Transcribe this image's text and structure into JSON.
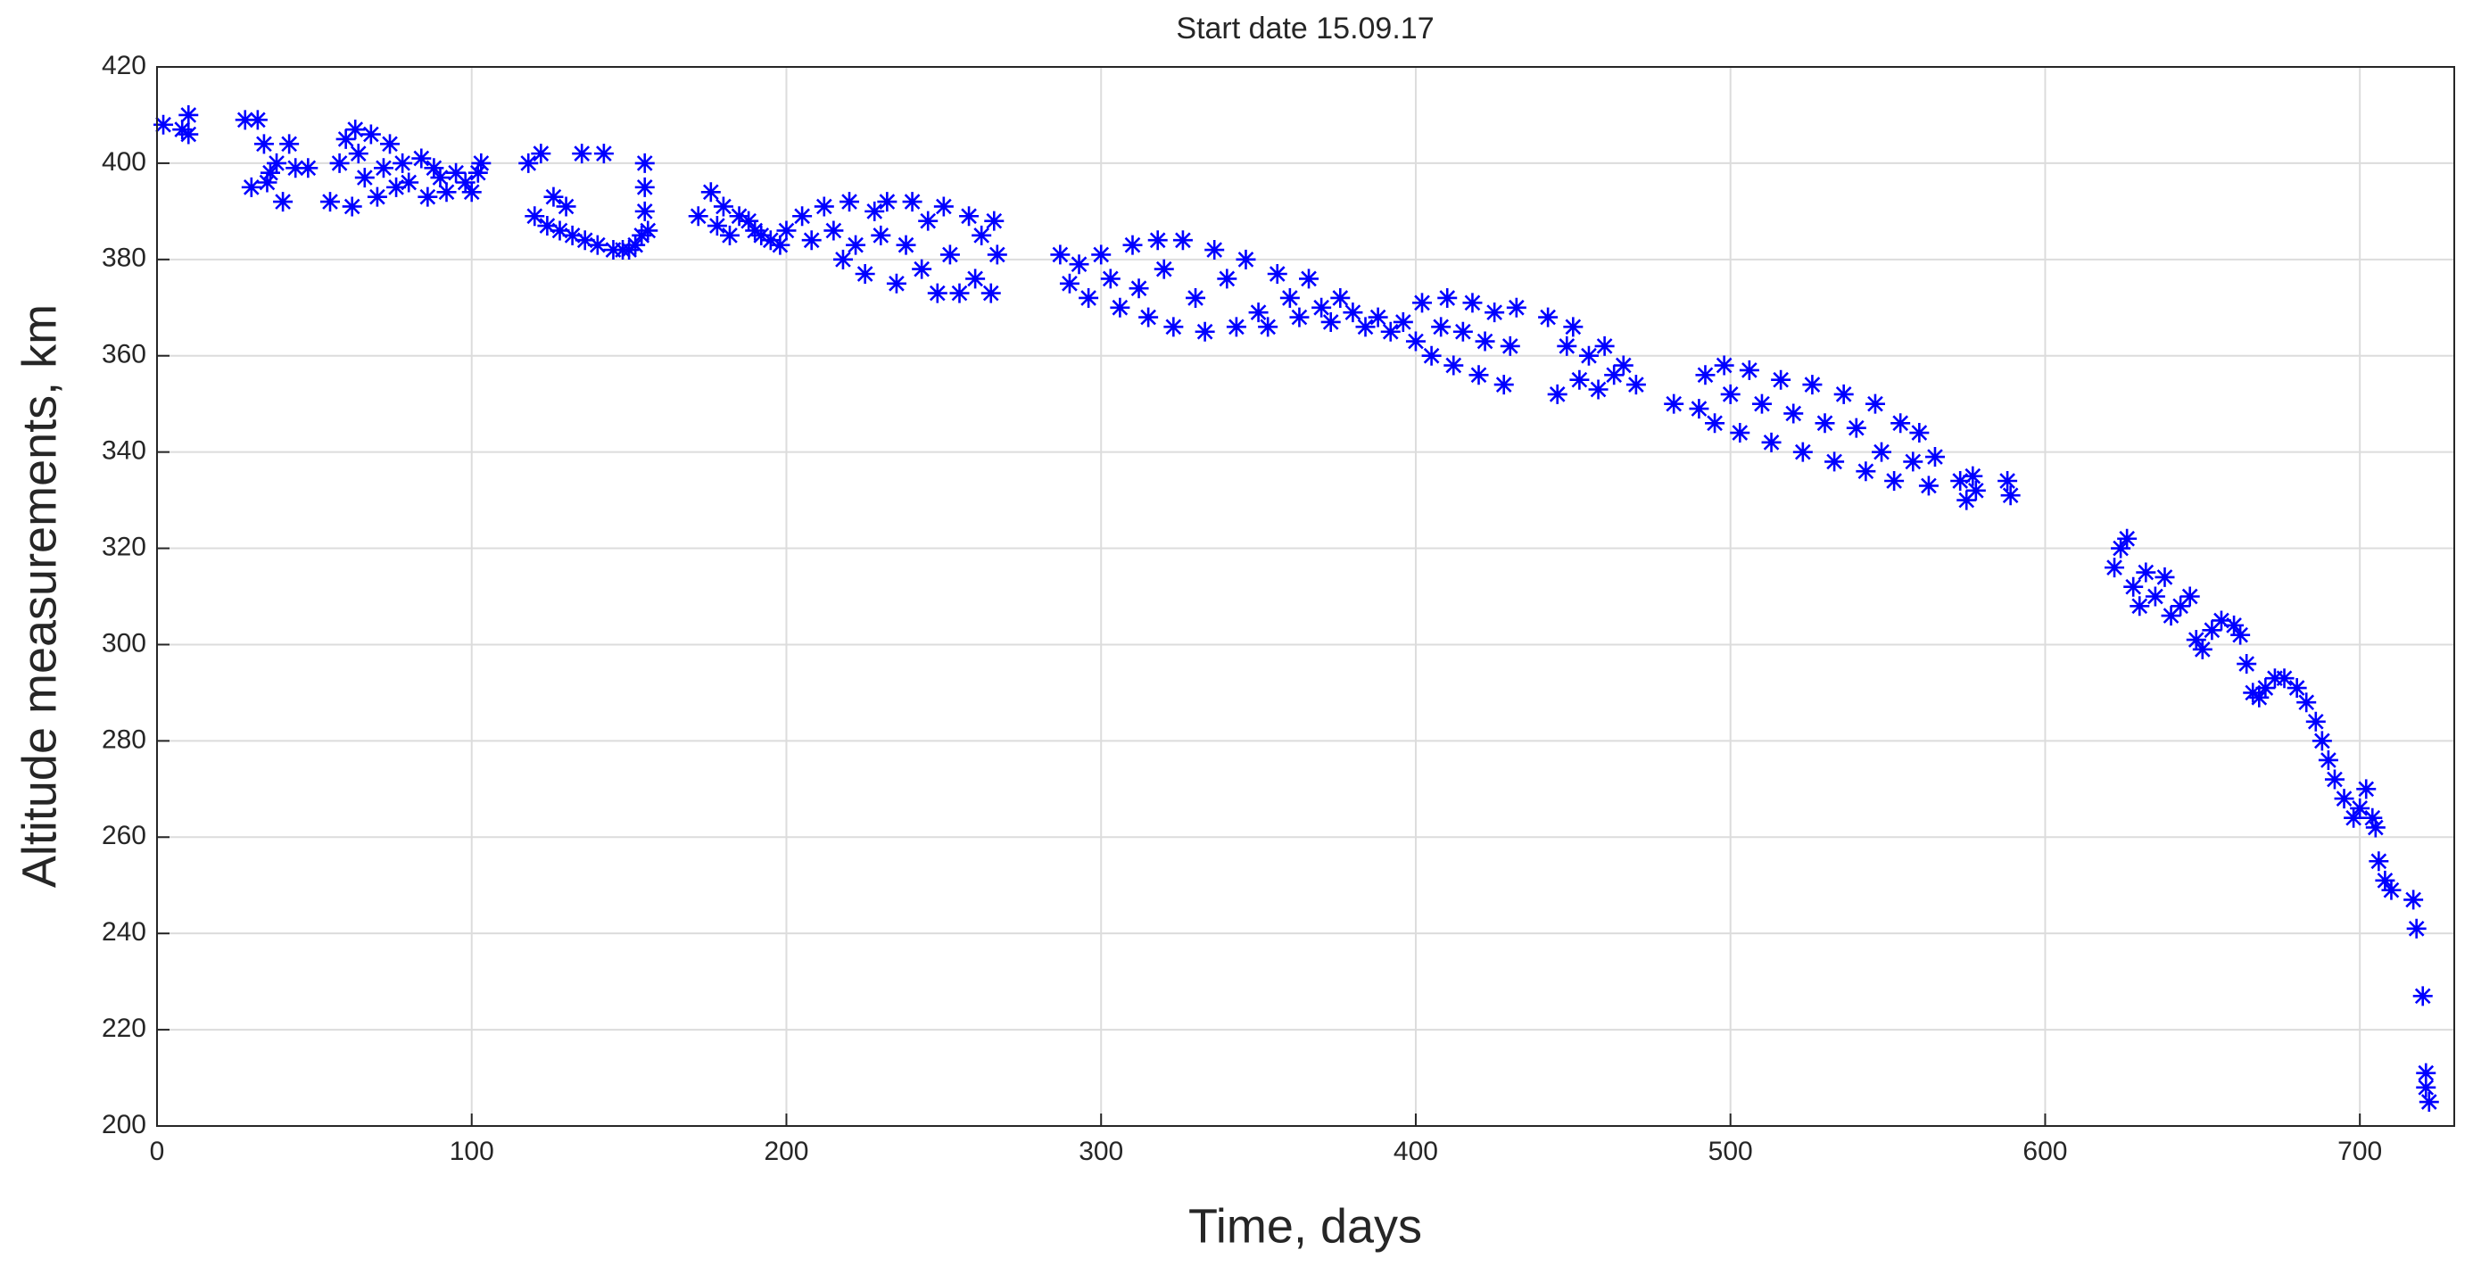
{
  "chart_data": {
    "type": "scatter",
    "title": "Start date 15.09.17",
    "xlabel": "Time, days",
    "ylabel": "Altitude measurements, km",
    "color": "#0000ff",
    "marker": "asterisk",
    "grid": true,
    "xlim": [
      0,
      730
    ],
    "ylim": [
      200,
      420
    ],
    "xticks": [
      0,
      100,
      200,
      300,
      400,
      500,
      600,
      700
    ],
    "yticks": [
      200,
      220,
      240,
      260,
      280,
      300,
      320,
      340,
      360,
      380,
      400,
      420
    ],
    "x": [
      2,
      8,
      10,
      10,
      28,
      30,
      32,
      34,
      35,
      36,
      38,
      40,
      42,
      44,
      48,
      55,
      58,
      60,
      62,
      63,
      64,
      66,
      68,
      70,
      72,
      74,
      76,
      78,
      80,
      84,
      86,
      88,
      90,
      92,
      95,
      98,
      100,
      102,
      103,
      118,
      120,
      122,
      124,
      126,
      128,
      130,
      132,
      135,
      136,
      140,
      142,
      145,
      148,
      150,
      152,
      154,
      155,
      155,
      155,
      156,
      172,
      176,
      178,
      180,
      182,
      185,
      188,
      190,
      192,
      195,
      198,
      200,
      205,
      208,
      212,
      215,
      218,
      220,
      222,
      225,
      228,
      230,
      232,
      235,
      238,
      240,
      243,
      245,
      248,
      250,
      252,
      255,
      258,
      260,
      262,
      265,
      266,
      267,
      287,
      290,
      293,
      296,
      300,
      303,
      306,
      310,
      312,
      315,
      318,
      320,
      323,
      326,
      330,
      333,
      336,
      340,
      343,
      346,
      350,
      353,
      356,
      360,
      363,
      366,
      370,
      373,
      376,
      380,
      384,
      388,
      392,
      396,
      400,
      402,
      405,
      408,
      410,
      412,
      415,
      418,
      420,
      422,
      425,
      428,
      430,
      432,
      442,
      445,
      448,
      450,
      452,
      455,
      458,
      460,
      463,
      466,
      470,
      482,
      490,
      492,
      495,
      498,
      500,
      503,
      506,
      510,
      513,
      516,
      520,
      523,
      526,
      530,
      533,
      536,
      540,
      543,
      546,
      548,
      552,
      554,
      558,
      560,
      563,
      565,
      573,
      575,
      577,
      578,
      588,
      589,
      622,
      624,
      626,
      628,
      630,
      632,
      635,
      638,
      640,
      643,
      646,
      648,
      650,
      653,
      656,
      660,
      662,
      664,
      666,
      668,
      670,
      673,
      676,
      680,
      683,
      686,
      688,
      690,
      692,
      695,
      698,
      700,
      702,
      704,
      705,
      706,
      708,
      710,
      717,
      718,
      720,
      721,
      721,
      722
    ],
    "values": [
      408,
      407,
      410,
      406,
      409,
      395,
      409,
      404,
      396,
      398,
      400,
      392,
      404,
      399,
      399,
      392,
      400,
      405,
      391,
      407,
      402,
      397,
      406,
      393,
      399,
      404,
      395,
      400,
      396,
      401,
      393,
      399,
      397,
      394,
      398,
      396,
      394,
      398,
      400,
      400,
      389,
      402,
      387,
      393,
      386,
      391,
      385,
      402,
      384,
      383,
      402,
      382,
      382,
      382,
      383,
      385,
      390,
      395,
      400,
      386,
      389,
      394,
      387,
      391,
      385,
      389,
      388,
      386,
      385,
      384,
      383,
      386,
      389,
      384,
      391,
      386,
      380,
      392,
      383,
      377,
      390,
      385,
      392,
      375,
      383,
      392,
      378,
      388,
      373,
      391,
      381,
      373,
      389,
      376,
      385,
      373,
      388,
      381,
      381,
      375,
      379,
      372,
      381,
      376,
      370,
      383,
      374,
      368,
      384,
      378,
      366,
      384,
      372,
      365,
      382,
      376,
      366,
      380,
      369,
      366,
      377,
      372,
      368,
      376,
      370,
      367,
      372,
      369,
      366,
      368,
      365,
      367,
      363,
      371,
      360,
      366,
      372,
      358,
      365,
      371,
      356,
      363,
      369,
      354,
      362,
      370,
      368,
      352,
      362,
      366,
      355,
      360,
      353,
      362,
      356,
      358,
      354,
      350,
      349,
      356,
      346,
      358,
      352,
      344,
      357,
      350,
      342,
      355,
      348,
      340,
      354,
      346,
      338,
      352,
      345,
      336,
      350,
      340,
      334,
      346,
      338,
      344,
      333,
      339,
      334,
      330,
      335,
      332,
      334,
      331,
      316,
      320,
      322,
      312,
      308,
      315,
      310,
      314,
      306,
      308,
      310,
      301,
      299,
      303,
      305,
      304,
      302,
      296,
      290,
      289,
      291,
      293,
      293,
      291,
      288,
      284,
      280,
      276,
      272,
      268,
      264,
      266,
      270,
      264,
      262,
      255,
      251,
      249,
      247,
      241,
      227,
      211,
      208,
      205
    ]
  }
}
